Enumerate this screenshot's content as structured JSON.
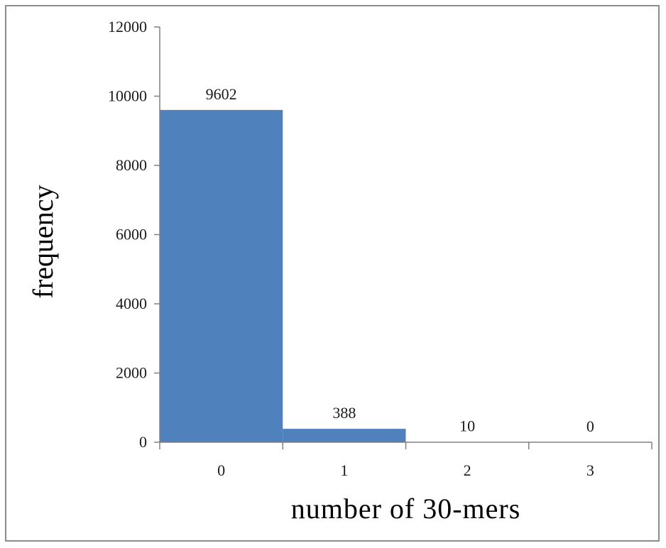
{
  "chart_data": {
    "type": "bar",
    "categories": [
      "0",
      "1",
      "2",
      "3"
    ],
    "values": [
      9602,
      388,
      10,
      0
    ],
    "data_labels": [
      "9602",
      "388",
      "10",
      "0"
    ],
    "title": "",
    "xlabel": "number of 30-mers",
    "ylabel": "frequency",
    "ylim": [
      0,
      12000
    ],
    "yticks": [
      0,
      2000,
      4000,
      6000,
      8000,
      10000,
      12000
    ],
    "ytick_labels": [
      "0",
      "2000",
      "4000",
      "6000",
      "8000",
      "10000",
      "12000"
    ],
    "grid": false,
    "legend": "none",
    "bar_color": "#4f81bd"
  }
}
